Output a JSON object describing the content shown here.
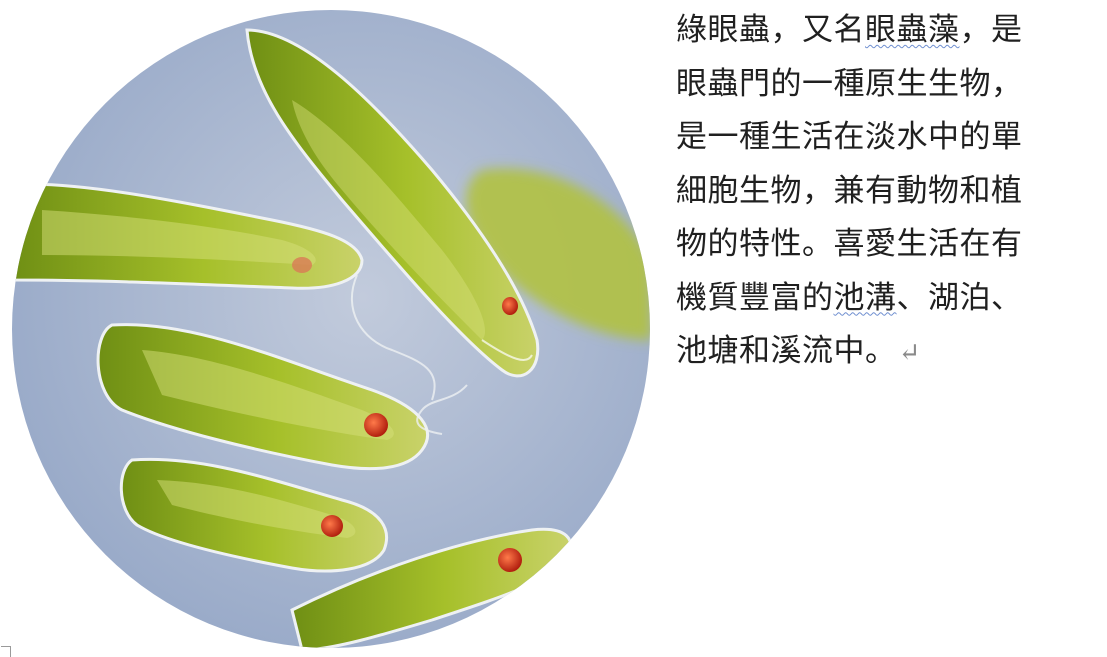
{
  "image": {
    "subject": "euglena-micrograph",
    "colors": {
      "background": "#a9b7cf",
      "cell_green": "#8fae1f",
      "cell_light": "#d6e07a",
      "cell_dark": "#4f6a12",
      "eyespot": "#c8321c",
      "membrane": "#eef1f3"
    }
  },
  "text": {
    "line1_a": "綠眼蟲，又名",
    "line1_link": "眼蟲藻",
    "line1_b": "，是",
    "line2": "眼蟲門的一種原生生物，",
    "line3": "是一種生活在淡水中的單",
    "line4": "細胞生物，兼有動物和植",
    "line5": "物的特性。喜愛生活在有",
    "line6_a": "機質豐富的",
    "line6_link": "池溝",
    "line6_b": "、湖泊、",
    "line7": "池塘和溪流中。",
    "paragraph_mark": "↵"
  }
}
